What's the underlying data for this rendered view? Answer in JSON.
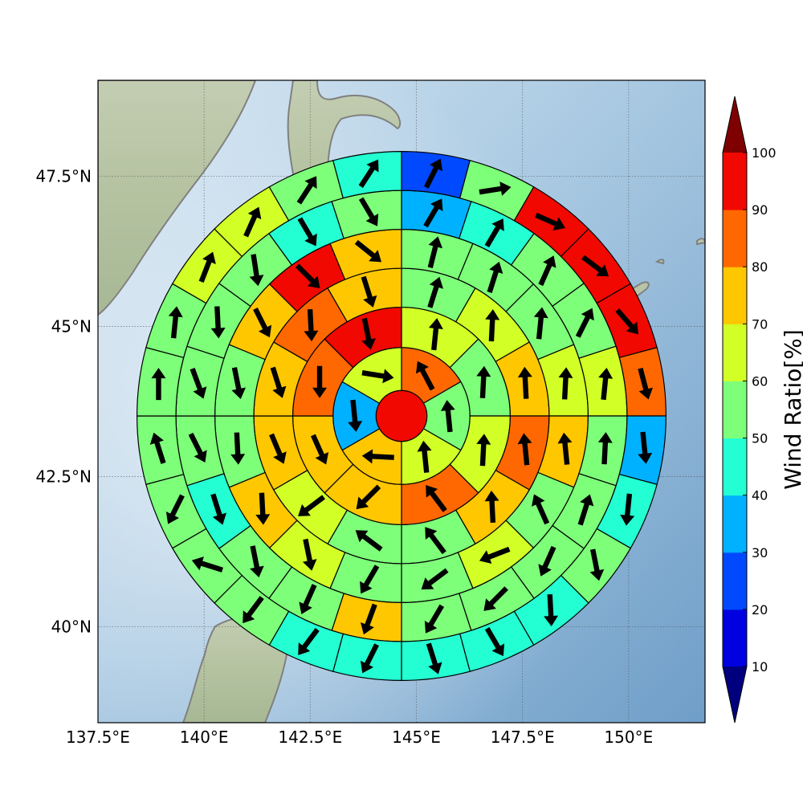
{
  "chart_data": {
    "type": "polar-sector-map",
    "center": {
      "lon": 144.7,
      "lat": 44.2
    },
    "x_axis": {
      "ticks": [
        137.5,
        140,
        142.5,
        145,
        147.5,
        150
      ],
      "tick_labels": [
        "137.5°E",
        "140°E",
        "142.5°E",
        "145°E",
        "147.5°E",
        "150°E"
      ],
      "range": [
        137.5,
        151.8
      ]
    },
    "y_axis": {
      "ticks": [
        40,
        42.5,
        45,
        47.5
      ],
      "tick_labels": [
        "40°N",
        "42.5°N",
        "45°N",
        "47.5°N"
      ],
      "range": [
        38.4,
        49.1
      ]
    },
    "grid": true,
    "rings": [
      {
        "sectors": 1,
        "values": [
          97
        ],
        "arrows": [
          null
        ]
      },
      {
        "sectors": 6,
        "values": [
          85,
          55,
          65,
          75,
          35,
          65
        ],
        "arrows": [
          [
            -0.45,
            0.85
          ],
          [
            -0.1,
            1
          ],
          [
            -0.1,
            1
          ],
          [
            -1,
            0.05
          ],
          [
            0.1,
            -1
          ],
          [
            0.95,
            -0.15
          ]
        ]
      },
      {
        "sectors": 8,
        "values": [
          65,
          55,
          65,
          85,
          75,
          75,
          85,
          95
        ],
        "arrows": [
          [
            0.1,
            1
          ],
          [
            0.05,
            1
          ],
          [
            0.05,
            1
          ],
          [
            -0.6,
            0.8
          ],
          [
            -0.7,
            -0.7
          ],
          [
            0.4,
            -0.9
          ],
          [
            0,
            -1
          ],
          [
            0.2,
            -1
          ]
        ]
      },
      {
        "sectors": 12,
        "values": [
          55,
          65,
          75,
          85,
          75,
          55,
          55,
          65,
          75,
          75,
          85,
          75
        ],
        "arrows": [
          [
            0.3,
            0.95
          ],
          [
            0.05,
            1
          ],
          [
            -0.05,
            1
          ],
          [
            -0.1,
            1
          ],
          [
            -0.05,
            1
          ],
          [
            -0.6,
            0.8
          ],
          [
            -0.8,
            0.6
          ],
          [
            -0.8,
            -0.6
          ],
          [
            0.4,
            -0.95
          ],
          [
            0.3,
            -0.95
          ],
          [
            0.05,
            -1
          ],
          [
            0.3,
            -0.95
          ]
        ]
      },
      {
        "sectors": 16,
        "values": [
          55,
          55,
          55,
          65,
          75,
          55,
          65,
          55,
          55,
          65,
          75,
          55,
          55,
          75,
          95,
          75
        ],
        "arrows": [
          [
            0.25,
            1
          ],
          [
            0.3,
            0.95
          ],
          [
            0.1,
            1
          ],
          [
            0.05,
            1
          ],
          [
            -0.1,
            1
          ],
          [
            -0.4,
            0.9
          ],
          [
            -0.9,
            -0.35
          ],
          [
            -0.8,
            -0.6
          ],
          [
            -0.5,
            -0.85
          ],
          [
            0.2,
            -1
          ],
          [
            0.05,
            -1
          ],
          [
            0.05,
            -1
          ],
          [
            0.2,
            -1
          ],
          [
            0.45,
            -0.9
          ],
          [
            0.7,
            -0.7
          ],
          [
            0.75,
            -0.6
          ]
        ]
      },
      {
        "sectors": 20,
        "values": [
          35,
          45,
          55,
          55,
          65,
          55,
          55,
          55,
          55,
          55,
          75,
          55,
          55,
          45,
          55,
          55,
          55,
          55,
          45,
          55
        ],
        "arrows": [
          [
            0.5,
            0.85
          ],
          [
            0.5,
            0.85
          ],
          [
            0.4,
            0.9
          ],
          [
            0.45,
            0.9
          ],
          [
            0.1,
            1
          ],
          [
            0.05,
            1
          ],
          [
            0.3,
            0.95
          ],
          [
            -0.4,
            -0.9
          ],
          [
            -0.7,
            -0.7
          ],
          [
            -0.5,
            -0.85
          ],
          [
            -0.35,
            -0.95
          ],
          [
            -0.4,
            -0.9
          ],
          [
            0.2,
            -1
          ],
          [
            0.3,
            -0.95
          ],
          [
            0.45,
            -0.9
          ],
          [
            0.35,
            -0.95
          ],
          [
            0.05,
            -1
          ],
          [
            0.15,
            -1
          ],
          [
            0.5,
            -0.85
          ],
          [
            0.5,
            -0.85
          ]
        ]
      },
      {
        "sectors": 24,
        "values": [
          25,
          55,
          95,
          97,
          97,
          85,
          35,
          45,
          55,
          45,
          45,
          45,
          45,
          45,
          55,
          55,
          55,
          55,
          55,
          55,
          65,
          65,
          55,
          45
        ],
        "arrows": [
          [
            0.45,
            0.9
          ],
          [
            0.95,
            0.15
          ],
          [
            0.9,
            -0.4
          ],
          [
            0.8,
            -0.6
          ],
          [
            0.65,
            -0.75
          ],
          [
            0.25,
            -0.95
          ],
          [
            0.1,
            -1
          ],
          [
            -0.1,
            -1
          ],
          [
            0.2,
            -1
          ],
          [
            0.05,
            -1
          ],
          [
            0.5,
            -0.85
          ],
          [
            0.3,
            -0.95
          ],
          [
            -0.45,
            -0.9
          ],
          [
            -0.6,
            -0.8
          ],
          [
            -0.6,
            -0.8
          ],
          [
            -0.95,
            0.3
          ],
          [
            -0.45,
            -0.9
          ],
          [
            -0.3,
            0.95
          ],
          [
            0,
            1
          ],
          [
            0.1,
            1
          ],
          [
            0.35,
            0.9
          ],
          [
            0.4,
            0.9
          ],
          [
            0.55,
            0.85
          ],
          [
            0.55,
            0.85
          ]
        ]
      }
    ],
    "colorbar": {
      "label": "Wind Ratio[%]",
      "ticks": [
        10,
        20,
        30,
        40,
        50,
        60,
        70,
        80,
        90,
        100
      ],
      "tick_labels": [
        "10",
        "20",
        "30",
        "40",
        "50",
        "60",
        "70",
        "80",
        "90",
        "100"
      ],
      "levels": [
        0,
        10,
        20,
        30,
        40,
        50,
        60,
        70,
        80,
        90,
        100,
        110
      ],
      "colors": [
        "#00007f",
        "#0000e1",
        "#0049ff",
        "#00b1ff",
        "#23ffd3",
        "#7dff79",
        "#d1ff26",
        "#ffc700",
        "#ff6800",
        "#f10800",
        "#7f0000"
      ],
      "extend": "both"
    }
  }
}
